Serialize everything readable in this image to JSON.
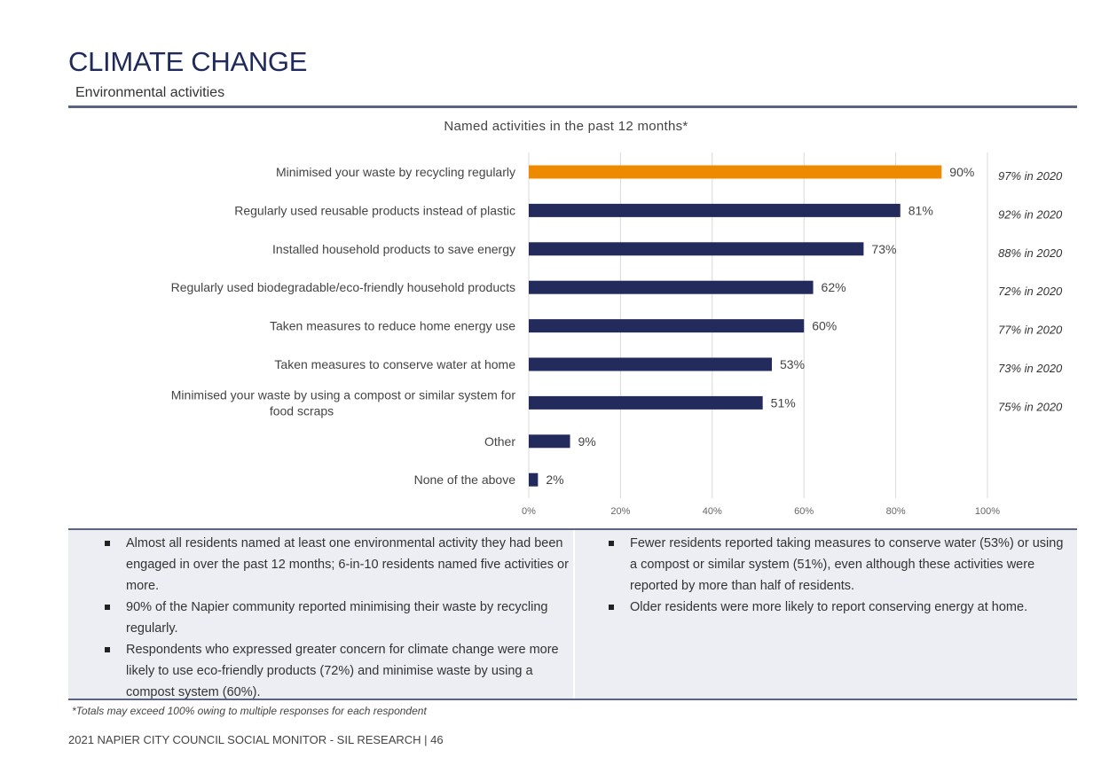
{
  "header": {
    "title": "CLIMATE CHANGE",
    "subtitle": "Environmental activities"
  },
  "chart_data": {
    "type": "bar",
    "orientation": "horizontal",
    "title": "Named activities in the past 12 months*",
    "categories": [
      "Minimised your waste by recycling regularly",
      "Regularly used reusable products instead of plastic",
      "Installed household products to save energy",
      "Regularly used biodegradable/eco-friendly household products",
      "Taken measures to reduce home energy use",
      "Taken measures to conserve water at home",
      "Minimised your waste by using a compost or similar system for food scraps",
      "Other",
      "None of the above"
    ],
    "values": [
      90,
      81,
      73,
      62,
      60,
      53,
      51,
      9,
      2
    ],
    "value_labels": [
      "90%",
      "81%",
      "73%",
      "62%",
      "60%",
      "53%",
      "51%",
      "9%",
      "2%"
    ],
    "comparison_labels": [
      "97% in 2020",
      "92% in 2020",
      "88% in 2020",
      "72% in 2020",
      "77% in 2020",
      "73% in 2020",
      "75% in 2020",
      "",
      ""
    ],
    "xlim": [
      0,
      100
    ],
    "xticks": [
      "0%",
      "20%",
      "40%",
      "60%",
      "80%",
      "100%"
    ],
    "grid": true,
    "colors": {
      "highlight": "#ee8a00",
      "default": "#222b5b",
      "grid": "#d9d9d9"
    },
    "highlight_index": 0
  },
  "summary": {
    "left": [
      "Almost all residents named at least one environmental activity they had been engaged in over the past 12 months; 6-in-10 residents named five activities or more.",
      "90% of the Napier community reported minimising their waste by recycling regularly.",
      "Respondents who expressed greater concern for climate change were more likely to use eco-friendly products (72%) and minimise waste by using a compost system (60%)."
    ],
    "right": [
      "Fewer residents reported taking measures to conserve water (53%) or using a compost or similar system (51%), even although these activities were reported by more than half of residents.",
      "Older residents were more likely to report conserving energy at home."
    ]
  },
  "footnote": "*Totals may exceed 100% owing to multiple responses for each respondent",
  "footer": "2021 NAPIER CITY COUNCIL SOCIAL MONITOR - SIL RESEARCH | 46"
}
